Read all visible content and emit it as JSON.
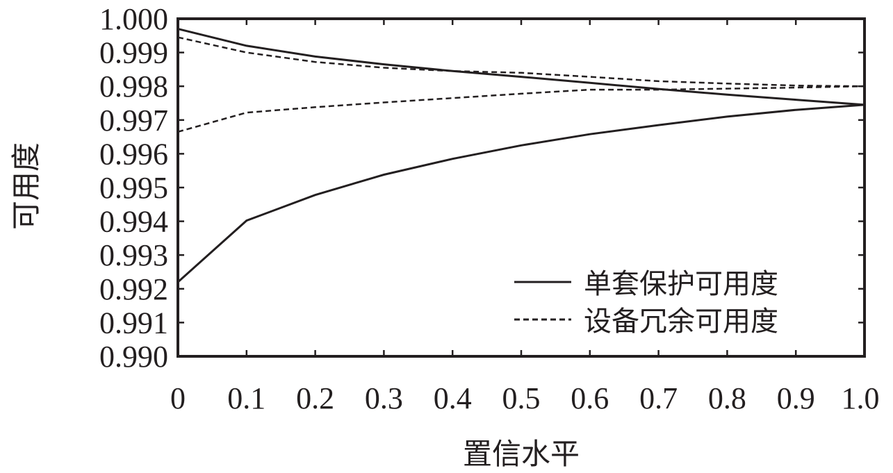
{
  "chart_data": {
    "type": "line",
    "xlabel": "置信水平",
    "ylabel": "可用度",
    "xlim": [
      0,
      1.0
    ],
    "ylim": [
      0.99,
      1.0
    ],
    "xticks": [
      "0",
      "0.1",
      "0.2",
      "0.3",
      "0.4",
      "0.5",
      "0.6",
      "0.7",
      "0.8",
      "0.9",
      "1.0"
    ],
    "yticks": [
      "0.990",
      "0.991",
      "0.992",
      "0.993",
      "0.994",
      "0.995",
      "0.996",
      "0.997",
      "0.998",
      "0.999",
      "1.000"
    ],
    "grid": false,
    "legend_position": "bottom-right",
    "color": "#231f20",
    "series": [
      {
        "name": "单套保护可用度",
        "style": "solid",
        "x": [
          0,
          0.1,
          0.2,
          0.3,
          0.4,
          0.5,
          0.6,
          0.7,
          0.8,
          0.9,
          1.0
        ],
        "y": [
          0.9997,
          0.9992,
          0.99888,
          0.99865,
          0.99845,
          0.99828,
          0.9981,
          0.99792,
          0.99775,
          0.9976,
          0.99745
        ]
      },
      {
        "name": "单套保护可用度",
        "style": "solid",
        "x": [
          0,
          0.1,
          0.2,
          0.3,
          0.4,
          0.5,
          0.6,
          0.7,
          0.8,
          0.9,
          1.0
        ],
        "y": [
          0.9922,
          0.99402,
          0.99478,
          0.99538,
          0.99585,
          0.99625,
          0.99658,
          0.99685,
          0.9971,
          0.9973,
          0.99745
        ]
      },
      {
        "name": "设备冗余可用度",
        "style": "dashed",
        "x": [
          0,
          0.1,
          0.2,
          0.3,
          0.4,
          0.5,
          0.6,
          0.7,
          0.8,
          0.9,
          1.0
        ],
        "y": [
          0.99945,
          0.999,
          0.99872,
          0.99855,
          0.99845,
          0.9984,
          0.99828,
          0.99815,
          0.99808,
          0.99802,
          0.998
        ]
      },
      {
        "name": "设备冗余可用度",
        "style": "dashed",
        "x": [
          0,
          0.1,
          0.2,
          0.3,
          0.4,
          0.5,
          0.6,
          0.7,
          0.8,
          0.9,
          1.0
        ],
        "y": [
          0.99665,
          0.99722,
          0.99738,
          0.99752,
          0.99765,
          0.99778,
          0.9979,
          0.9979,
          0.99793,
          0.99796,
          0.998
        ]
      }
    ],
    "legend": [
      {
        "label": "单套保护可用度",
        "style": "solid"
      },
      {
        "label": "设备冗余可用度",
        "style": "dashed"
      }
    ]
  }
}
